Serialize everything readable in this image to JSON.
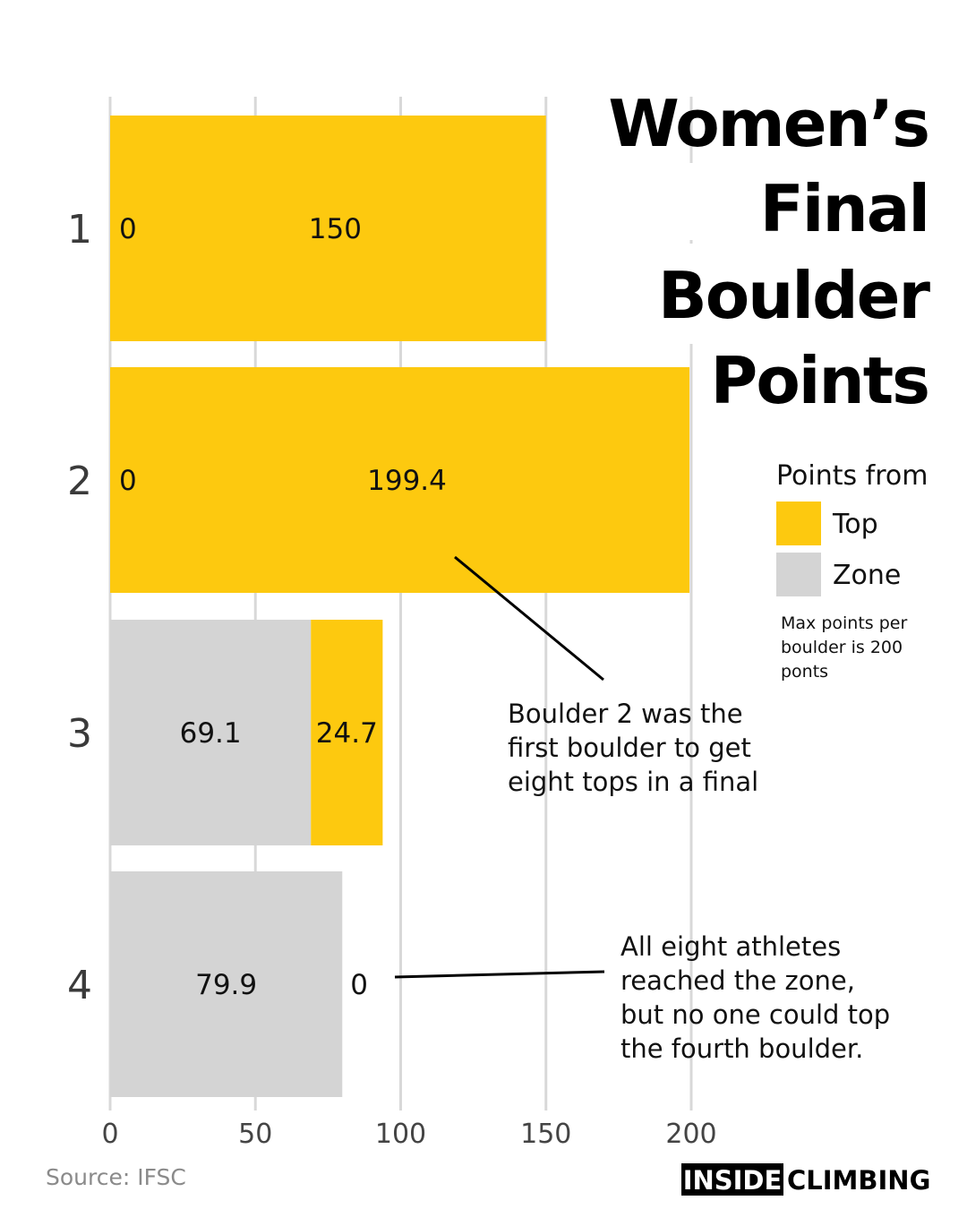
{
  "title_lines": [
    "Women’s",
    "Final",
    "Boulder",
    "Points"
  ],
  "source": "Source: IFSC",
  "logo": {
    "left": "INSIDE",
    "right": "CLIMBING"
  },
  "legend": {
    "title": "Points from",
    "items": [
      {
        "label": "Top",
        "color": "#FDC90F"
      },
      {
        "label": "Zone",
        "color": "#D4D4D4"
      }
    ],
    "note": [
      "Max points per",
      "boulder is 200",
      "ponts"
    ]
  },
  "annotations": [
    {
      "lines": [
        "Boulder 2 was the",
        "first boulder to get",
        "eight tops in a final"
      ]
    },
    {
      "lines": [
        "All eight athletes",
        "reached the zone,",
        "but no one could top",
        "the fourth boulder."
      ]
    }
  ],
  "chart_data": {
    "type": "bar",
    "orientation": "horizontal",
    "stacked": true,
    "categories": [
      "1",
      "2",
      "3",
      "4"
    ],
    "series": [
      {
        "name": "Zone",
        "color": "#D4D4D4",
        "values": [
          0,
          0,
          69.1,
          79.9
        ]
      },
      {
        "name": "Top",
        "color": "#FDC90F",
        "values": [
          150,
          199.4,
          24.7,
          0
        ]
      }
    ],
    "data_labels": {
      "zone": [
        "0",
        "0",
        "69.1",
        "79.9"
      ],
      "top": [
        "150",
        "199.4",
        "24.7",
        "0"
      ]
    },
    "x_ticks": [
      "0",
      "50",
      "100",
      "150",
      "200"
    ],
    "xlim": [
      0,
      200
    ],
    "grid": "vertical",
    "legend_position": "right",
    "title": "Women’s Final Boulder Points",
    "xlabel": "",
    "ylabel": ""
  }
}
